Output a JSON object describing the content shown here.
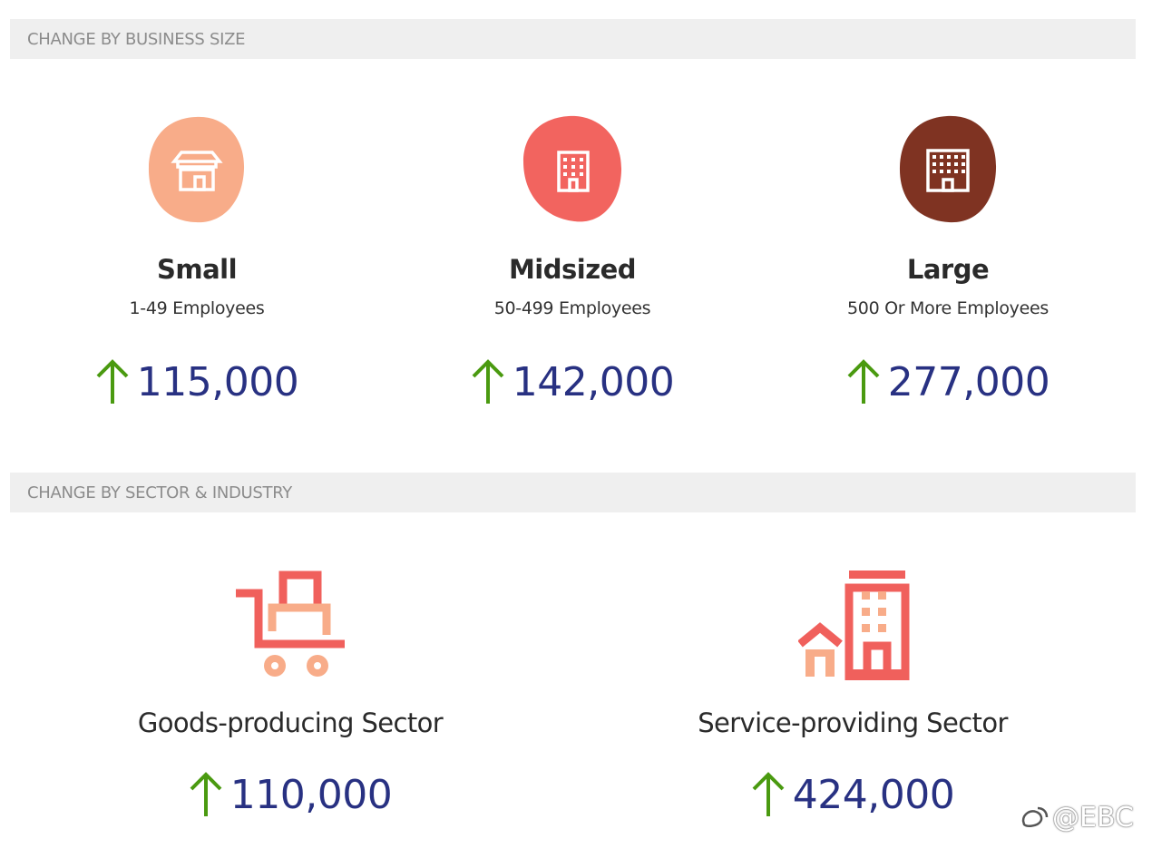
{
  "sections": {
    "business_size": {
      "label": "CHANGE BY BUSINESS SIZE"
    },
    "sector": {
      "label": "CHANGE BY SECTOR & INDUSTRY"
    }
  },
  "business_sizes": [
    {
      "title": "Small",
      "subtitle": "1-49 Employees",
      "value": "115,000",
      "icon": "house-store-icon",
      "color": "#f8ac89"
    },
    {
      "title": "Midsized",
      "subtitle": "50-499 Employees",
      "value": "142,000",
      "icon": "office-building-icon",
      "color": "#f2645f"
    },
    {
      "title": "Large",
      "subtitle": "500 Or More Employees",
      "value": "277,000",
      "icon": "tower-building-icon",
      "color": "#7f3322"
    }
  ],
  "sectors": [
    {
      "title": "Goods-producing Sector",
      "value": "110,000",
      "icon": "hand-truck-icon"
    },
    {
      "title": "Service-providing Sector",
      "value": "424,000",
      "icon": "city-buildings-icon"
    }
  ],
  "colors": {
    "up_arrow": "#4a9a10",
    "value_text": "#283182",
    "accent_red": "#f0605c",
    "accent_peach": "#f8ac89"
  },
  "watermark": {
    "text": "@EBC"
  }
}
